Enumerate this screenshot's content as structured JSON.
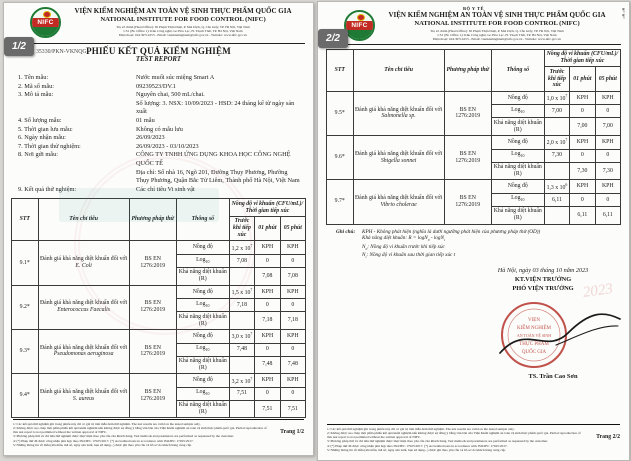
{
  "org": {
    "ministry": "BỘ Y TẾ",
    "title_vi": "VIỆN KIỂM NGHIỆM AN TOÀN VỆ SINH THỰC PHẨM QUỐC GIA",
    "title_en": "NATIONAL INSTITUTE FOR FOOD CONTROL (NIFC)",
    "logo_text": "NIFC",
    "address_lines": [
      "Trụ sở chính (Head Office): 65 Phạm Thận Duật, P. Mai Dịch, Q. Cầu Giấy, TP. Hà Nội, Việt Nam",
      "CS1 (Br. Office 1): Khu Công nghệ cao Hòa Lạc, H. Thạch Thất, TP. Hà Nội, Việt Nam",
      "Điện thoại: 024.39714253  -  Email: vienkiemnghiem@nifc.gov.vn  -  Website: www.nifc.gov.vn"
    ]
  },
  "page1": {
    "badge": "1/2",
    "doc_no": "35330/PKN-VKNQG",
    "report_title": "PHIẾU KẾT QUẢ KIỂM NGHIỆM",
    "report_subtitle": "TEST REPORT",
    "info_items": [
      {
        "label": "1. Tên mẫu:",
        "lines": [
          "Nước muối súc miệng Smart A"
        ]
      },
      {
        "label": "2. Mã số mẫu:",
        "lines": [
          "09239523/DV.1"
        ]
      },
      {
        "label": "3. Mô tả mẫu:",
        "lines": [
          "Nguyên chai, 500 mL/chai.",
          "Số lượng: 3. NSX: 10/09/2023 - HSD: 24 tháng kể từ ngày sản xuất"
        ]
      },
      {
        "label": "4. Số lượng mẫu:",
        "lines": [
          "01 mẫu"
        ]
      },
      {
        "label": "5. Thời gian lưu mẫu:",
        "lines": [
          "Không có mẫu lưu"
        ]
      },
      {
        "label": "6. Ngày nhận mẫu:",
        "lines": [
          "26/09/2023"
        ]
      },
      {
        "label": "7. Thời gian thử nghiệm:",
        "lines": [
          "26/09/2023 - 03/10/2023"
        ]
      },
      {
        "label": "8. Nơi gửi mẫu:",
        "lines": [
          "CÔNG TY TNHH ỨNG DỤNG KHOA HỌC CÔNG NGHỆ QUỐC TẾ",
          "Địa chỉ: Số nhà 16, Ngõ 201, Đường Thụy Phương, Phường Thụy Phương, Quận Bắc Từ Liêm, Thành phố Hà Nội, Việt Nam"
        ]
      },
      {
        "label": "9. Kết quả thử nghiệm:",
        "lines": [
          "Các chỉ tiêu Vi sinh vật"
        ]
      }
    ],
    "page_no": "Trang 1/2"
  },
  "page2": {
    "badge": "2/2",
    "notes": {
      "label": "Ghi chú:",
      "lines": [
        "KPH - Không phát hiện (nghĩa là dưới ngưỡng phát hiện của phương pháp thử (OD))",
        "Khả năng diệt khuẩn: R = logN_{0} - logN_{t}",
        "N_{0}: Nồng độ vi khuẩn trước khi tiếp xúc",
        "N_{t}: Nồng độ vi khuẩn sau thời gian tiếp xúc t"
      ]
    },
    "sign": {
      "date_line": "Hà Nội, ngày 03 tháng 10 năm 2023",
      "kt_line": "KT.VIỆN TRƯỞNG",
      "deputy_line": "PHÓ VIỆN TRƯỞNG",
      "signer_name": "TS. Trần Cao Sơn",
      "seal_text": [
        "VIỆN",
        "KIỂM NGHIỆM",
        "AN TOÀN VỆ SINH",
        "THỰC PHẨM",
        "QUỐC GIA"
      ],
      "faint_year": "2023"
    },
    "page_no": "Trang 2/2"
  },
  "table": {
    "headers": {
      "stt": "STT",
      "name": "Tên chỉ tiêu",
      "method": "Phương pháp thử",
      "param": "Thông số",
      "conc_group": "Nồng độ vi khuẩn (CFU/mL)/ Thời gian tiếp xúc",
      "before": "Trước khi tiếp xúc",
      "m1": "01 phút",
      "m5": "05 phút"
    },
    "name_prefix": "Đánh giá khả năng diệt khuẩn đối với",
    "method_lines": [
      "BS EN",
      "1276:2019"
    ],
    "param_labels": [
      "Nồng độ",
      "Log_{10}",
      "Khả năng diệt khuẩn (R)"
    ],
    "rows_page1": [
      {
        "stt": "9.1*",
        "organism": "E. Coli",
        "cells": [
          [
            "1,2 x 10^{7}",
            "KPH",
            "KPH"
          ],
          [
            "7,08",
            "0",
            "0"
          ],
          [
            "",
            "7,08",
            "7,08"
          ]
        ]
      },
      {
        "stt": "9.2*",
        "organism": "Enterococcus Faecalis",
        "cells": [
          [
            "1,5 x 10^{7}",
            "KPH",
            "KPH"
          ],
          [
            "7,18",
            "0",
            "0"
          ],
          [
            "",
            "7,18",
            "7,18"
          ]
        ]
      },
      {
        "stt": "9.3*",
        "organism": "Pseudomonas aeruginosa",
        "cells": [
          [
            "3,0 x 10^{7}",
            "KPH",
            "KPH"
          ],
          [
            "7,48",
            "0",
            "0"
          ],
          [
            "",
            "7,48",
            "7,48"
          ]
        ]
      },
      {
        "stt": "9.4*",
        "organism": "S. aureus",
        "cells": [
          [
            "3,2 x 10^{7}",
            "KPH",
            "KPH"
          ],
          [
            "7,51",
            "0",
            "0"
          ],
          [
            "",
            "7,51",
            "7,51"
          ]
        ]
      }
    ],
    "rows_page2": [
      {
        "stt": "9.5*",
        "organism": "Salmonella sp.",
        "cells": [
          [
            "1,0 x 10^{7}",
            "KPH",
            "KPH"
          ],
          [
            "7,00",
            "0",
            "0"
          ],
          [
            "",
            "7,00",
            "7,00"
          ]
        ]
      },
      {
        "stt": "9.6*",
        "organism": "Shigella sonnei",
        "cells": [
          [
            "2,0 x 10^{7}",
            "KPH",
            "KPH"
          ],
          [
            "7,30",
            "0",
            "0"
          ],
          [
            "",
            "7,30",
            "7,30"
          ]
        ]
      },
      {
        "stt": "9.7*",
        "organism": "Vibrio cholerae",
        "cells": [
          [
            "1,3 x 10^{6}",
            "KPH",
            "KPH"
          ],
          [
            "6,11",
            "0",
            "0"
          ],
          [
            "",
            "6,11",
            "6,11"
          ]
        ]
      }
    ]
  },
  "footnotes": [
    "1/ Các kết quả thử nghiệm ghi trong phiếu này chỉ có giá trị trên mẫu đem thử nghiệm. The test results are valid on the tested sample only.",
    "2/ Không được sao chép một phần phiếu kết quả kiểm nghiệm nếu không được sự đồng ý bằng văn bản của Viện Kiểm nghiệm an toàn vệ sinh thực phẩm quốc gia. Partial reproduction of this test report is not permitted without the written approval of NIFC.",
    "3/ Phương pháp thử và chỉ tiêu thử nghiệm được thực hiện theo yêu cầu của khách hàng. Test methods and parameters are performed as requested by the customer.",
    "4/ (*) Phép thử đã được công nhận phù hợp theo ISO/IEC 17025:2017. (*) Accredited tests in accordance with ISO/IEC 17025:2017.",
    "5/ Những thông tin về mẫu (tên mẫu, mã số, ngày sản xuất, hạn sử dụng...) được ghi theo yêu cầu và hồ sơ do khách hàng cung cấp."
  ]
}
